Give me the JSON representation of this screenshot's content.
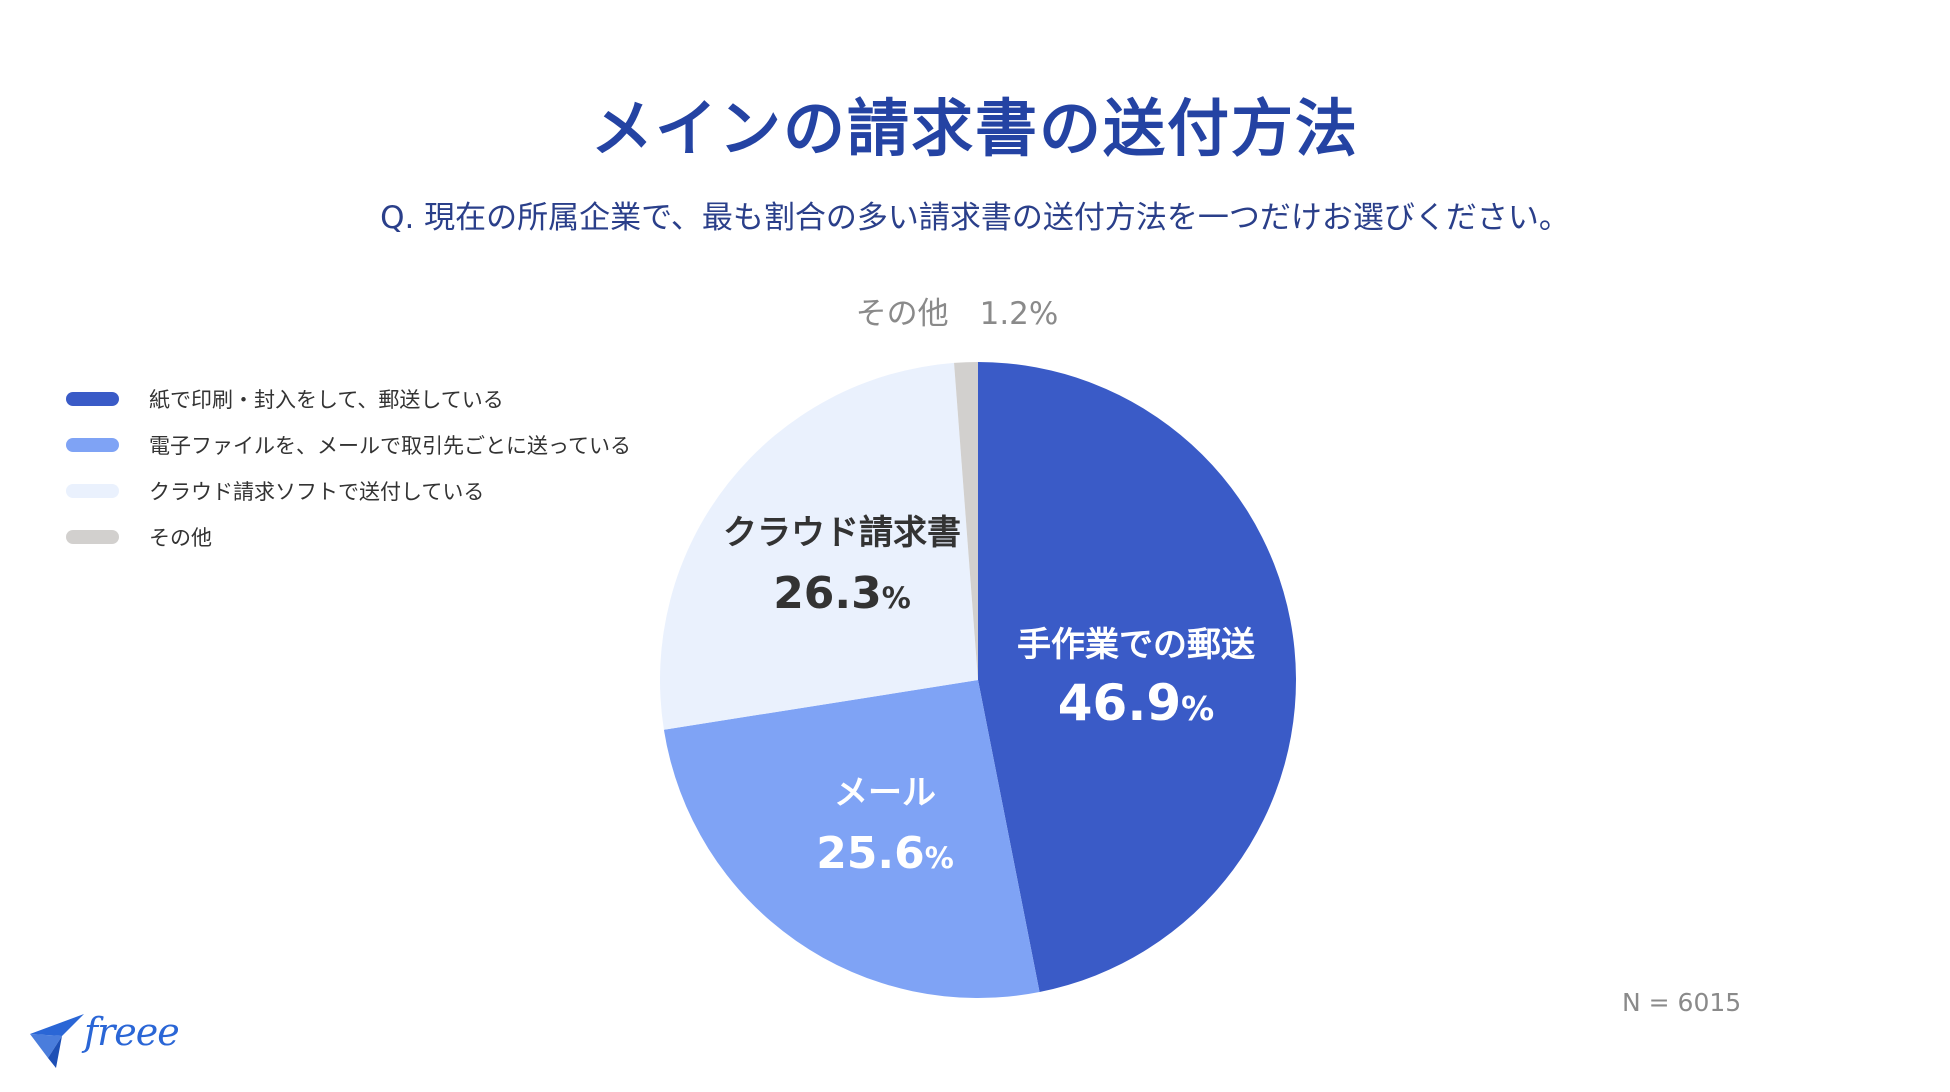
{
  "title": "メインの請求書の送付方法",
  "subtitle": "Q. 現在の所属企業で、最も割合の多い請求書の送付方法を一つだけお選びください。",
  "legend": [
    {
      "label": "紙で印刷・封入をして、郵送している",
      "color": "#3a5bc7"
    },
    {
      "label": "電子ファイルを、メールで取引先ごとに送っている",
      "color": "#7fa3f5"
    },
    {
      "label": "クラウド請求ソフトで送付している",
      "color": "#eaf1fd"
    },
    {
      "label": "その他",
      "color": "#d2d0ce"
    }
  ],
  "chart_data": {
    "type": "pie",
    "slices": [
      {
        "label": "手作業での郵送",
        "value": 46.9,
        "value_text": "46.9",
        "color": "#3a5bc7",
        "text_color": "#ffffff"
      },
      {
        "label": "メール",
        "value": 25.6,
        "value_text": "25.6",
        "color": "#7fa3f5",
        "text_color": "#ffffff"
      },
      {
        "label": "クラウド請求書",
        "value": 26.3,
        "value_text": "26.3",
        "color": "#eaf1fd",
        "text_color": "#333333"
      },
      {
        "label": "その他",
        "value": 1.2,
        "value_text": "1.2",
        "color": "#d2d0ce",
        "text_color": "#8a8a8a"
      }
    ],
    "percent_sign": "%",
    "outside_label": "その他　1.2%"
  },
  "note": "N = 6015",
  "brand": {
    "logo_text": "freee",
    "color": "#2a66d6"
  }
}
